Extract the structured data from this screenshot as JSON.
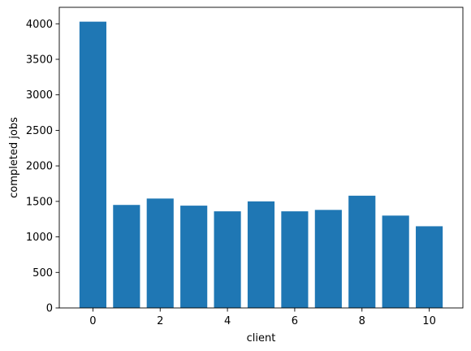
{
  "chart_data": {
    "type": "bar",
    "title": "",
    "xlabel": "client",
    "ylabel": "completed jobs",
    "x": [
      0,
      1,
      2,
      3,
      4,
      5,
      6,
      7,
      8,
      9,
      10
    ],
    "values": [
      4030,
      1450,
      1540,
      1440,
      1360,
      1500,
      1360,
      1380,
      1580,
      1300,
      1150
    ],
    "xlim": [
      -1,
      11
    ],
    "ylim": [
      0,
      4232
    ],
    "xticks": [
      0,
      2,
      4,
      6,
      8,
      10
    ],
    "yticks": [
      0,
      500,
      1000,
      1500,
      2000,
      2500,
      3000,
      3500,
      4000
    ],
    "bar_color": "#1f77b4",
    "grid": false,
    "legend": "none"
  }
}
